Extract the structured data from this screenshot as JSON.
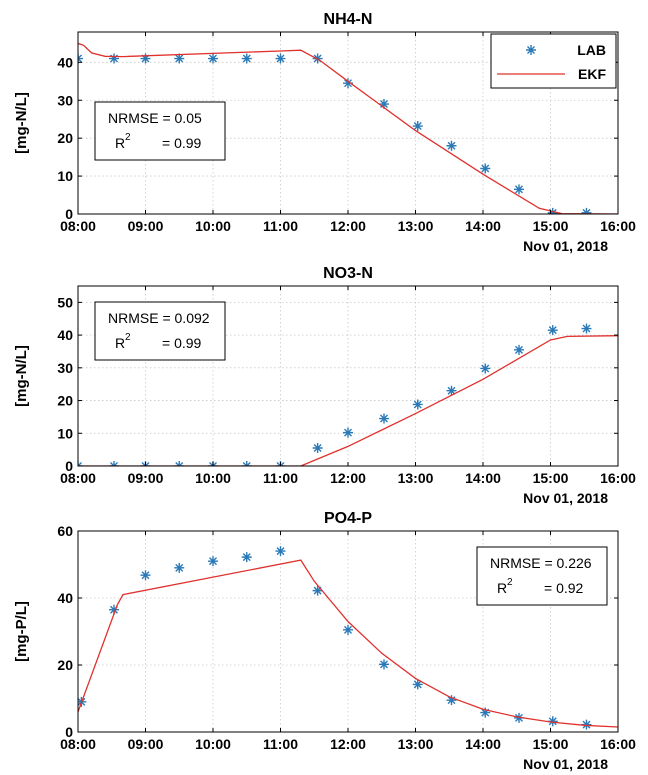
{
  "chart_data": [
    {
      "type": "line",
      "title": "NH4-N",
      "ylabel": "[mg-N/L]",
      "xlabel": "",
      "date_label": "Nov 01, 2018",
      "x_ticks": [
        "08:00",
        "09:00",
        "10:00",
        "11:00",
        "12:00",
        "13:00",
        "14:00",
        "15:00",
        "16:00"
      ],
      "xlim": [
        "08:00",
        "16:00"
      ],
      "ylim": [
        0,
        48
      ],
      "y_ticks": [
        0,
        10,
        20,
        30,
        40
      ],
      "grid": true,
      "legend": {
        "placement": "top-right",
        "entries": [
          {
            "label": "LAB",
            "marker": "asterisk",
            "color": "#2a7ab8"
          },
          {
            "label": "EKF",
            "marker": "line",
            "color": "#e0312d"
          }
        ]
      },
      "stats": {
        "placement": "left",
        "lines": [
          "NRMSE = 0.05",
          "= 0.99"
        ],
        "r2_base": "R",
        "r2_sup": "2"
      },
      "series": [
        {
          "name": "LAB",
          "style": "marker",
          "color": "#2a7ab8",
          "points": [
            [
              "08:00",
              41
            ],
            [
              "08:32",
              41
            ],
            [
              "09:00",
              41
            ],
            [
              "09:30",
              41
            ],
            [
              "10:00",
              41
            ],
            [
              "10:30",
              41
            ],
            [
              "11:00",
              41
            ],
            [
              "11:33",
              41
            ],
            [
              "12:00",
              34.5
            ],
            [
              "12:32",
              29
            ],
            [
              "13:02",
              23.2
            ],
            [
              "13:32",
              18
            ],
            [
              "14:02",
              12
            ],
            [
              "14:32",
              6.5
            ],
            [
              "15:02",
              0.3
            ],
            [
              "15:32",
              0.3
            ]
          ]
        },
        {
          "name": "EKF",
          "style": "line",
          "color": "#e0312d",
          "points": [
            [
              "08:00",
              45
            ],
            [
              "08:05",
              44.5
            ],
            [
              "08:12",
              42.5
            ],
            [
              "08:24",
              41.6
            ],
            [
              "08:40",
              41.5
            ],
            [
              "11:00",
              43
            ],
            [
              "11:18",
              43.2
            ],
            [
              "11:35",
              40.5
            ],
            [
              "12:00",
              35
            ],
            [
              "13:00",
              22
            ],
            [
              "14:00",
              10.5
            ],
            [
              "14:50",
              1.5
            ],
            [
              "15:10",
              0.1
            ],
            [
              "16:00",
              0
            ]
          ]
        }
      ]
    },
    {
      "type": "line",
      "title": "NO3-N",
      "ylabel": "[mg-N/L]",
      "xlabel": "",
      "date_label": "Nov 01, 2018",
      "x_ticks": [
        "08:00",
        "09:00",
        "10:00",
        "11:00",
        "12:00",
        "13:00",
        "14:00",
        "15:00",
        "16:00"
      ],
      "xlim": [
        "08:00",
        "16:00"
      ],
      "ylim": [
        0,
        55
      ],
      "y_ticks": [
        0,
        10,
        20,
        30,
        40,
        50
      ],
      "grid": true,
      "stats": {
        "placement": "top-left",
        "lines": [
          "NRMSE = 0.092",
          "= 0.99"
        ],
        "r2_base": "R",
        "r2_sup": "2"
      },
      "series": [
        {
          "name": "LAB",
          "style": "marker",
          "color": "#2a7ab8",
          "points": [
            [
              "08:00",
              0
            ],
            [
              "08:32",
              0
            ],
            [
              "09:00",
              0
            ],
            [
              "09:30",
              0
            ],
            [
              "10:00",
              0
            ],
            [
              "10:30",
              0
            ],
            [
              "11:00",
              0
            ],
            [
              "11:33",
              5.5
            ],
            [
              "12:00",
              10.2
            ],
            [
              "12:32",
              14.5
            ],
            [
              "13:02",
              18.8
            ],
            [
              "13:32",
              23
            ],
            [
              "14:02",
              29.8
            ],
            [
              "14:32",
              35.5
            ],
            [
              "15:02",
              41.5
            ],
            [
              "15:32",
              42
            ]
          ]
        },
        {
          "name": "EKF",
          "style": "line",
          "color": "#e0312d",
          "points": [
            [
              "08:00",
              0
            ],
            [
              "11:18",
              0
            ],
            [
              "12:00",
              6
            ],
            [
              "13:00",
              16
            ],
            [
              "14:00",
              26.5
            ],
            [
              "15:00",
              38.5
            ],
            [
              "15:15",
              39.6
            ],
            [
              "16:00",
              39.8
            ]
          ]
        }
      ]
    },
    {
      "type": "line",
      "title": "PO4-P",
      "ylabel": "[mg-P/L]",
      "xlabel": "",
      "date_label": "Nov 01, 2018",
      "x_ticks": [
        "08:00",
        "09:00",
        "10:00",
        "11:00",
        "12:00",
        "13:00",
        "14:00",
        "15:00",
        "16:00"
      ],
      "xlim": [
        "08:00",
        "16:00"
      ],
      "ylim": [
        0,
        60
      ],
      "y_ticks": [
        0,
        20,
        40,
        60
      ],
      "grid": true,
      "stats": {
        "placement": "top-right",
        "lines": [
          "NRMSE = 0.226",
          "= 0.92"
        ],
        "r2_base": "R",
        "r2_sup": "2"
      },
      "series": [
        {
          "name": "LAB",
          "style": "marker",
          "color": "#2a7ab8",
          "points": [
            [
              "08:03",
              9
            ],
            [
              "08:32",
              36.5
            ],
            [
              "09:00",
              46.8
            ],
            [
              "09:30",
              49
            ],
            [
              "10:00",
              51
            ],
            [
              "10:30",
              52.2
            ],
            [
              "11:00",
              54
            ],
            [
              "11:33",
              42.2
            ],
            [
              "12:00",
              30.5
            ],
            [
              "12:32",
              20.2
            ],
            [
              "13:02",
              14.2
            ],
            [
              "13:32",
              9.5
            ],
            [
              "14:02",
              5.8
            ],
            [
              "14:32",
              4.2
            ],
            [
              "15:02",
              3.2
            ],
            [
              "15:32",
              2.2
            ]
          ]
        },
        {
          "name": "EKF",
          "style": "line",
          "color": "#e0312d",
          "points": [
            [
              "08:00",
              6
            ],
            [
              "08:35",
              38
            ],
            [
              "08:40",
              41
            ],
            [
              "11:18",
              51.3
            ],
            [
              "11:30",
              45
            ],
            [
              "12:00",
              33
            ],
            [
              "12:30",
              23.5
            ],
            [
              "13:00",
              16
            ],
            [
              "13:30",
              10.5
            ],
            [
              "14:00",
              6.8
            ],
            [
              "14:30",
              4.5
            ],
            [
              "15:00",
              3
            ],
            [
              "15:30",
              2
            ],
            [
              "16:00",
              1.5
            ]
          ]
        }
      ]
    }
  ]
}
